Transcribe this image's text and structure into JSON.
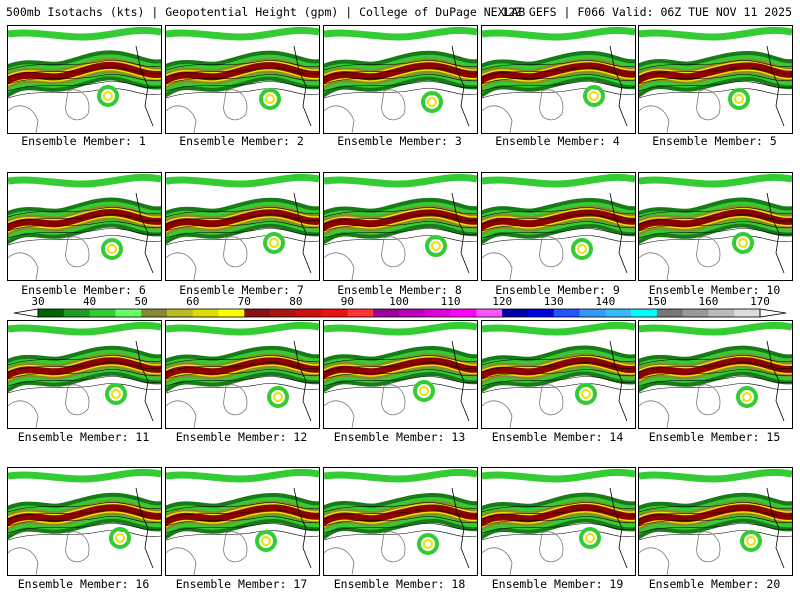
{
  "header": {
    "left": "500mb Isotachs (kts) | Geopotential Height (gpm) | College of DuPage NEXLAB",
    "right": "12Z GEFS | F066 Valid: 06Z TUE NOV 11 2025"
  },
  "caption_prefix": "Ensemble Member: ",
  "members": [
    "1",
    "2",
    "3",
    "4",
    "5",
    "6",
    "7",
    "8",
    "9",
    "10",
    "11",
    "12",
    "13",
    "14",
    "15",
    "16",
    "17",
    "18",
    "19",
    "20"
  ],
  "colorbar": {
    "ticks": [
      "30",
      "40",
      "50",
      "60",
      "70",
      "80",
      "90",
      "100",
      "110",
      "120",
      "130",
      "140",
      "150",
      "160",
      "170"
    ],
    "colors": [
      "#006400",
      "#229922",
      "#33cc33",
      "#66ff66",
      "#888833",
      "#bbbb22",
      "#dddd00",
      "#ffff00",
      "#881111",
      "#aa1111",
      "#cc1111",
      "#ee1111",
      "#ff3333",
      "#990099",
      "#bb00bb",
      "#dd00dd",
      "#ff00ff",
      "#ff55ff",
      "#0000aa",
      "#0000dd",
      "#2255ff",
      "#3399ff",
      "#33bbff",
      "#00ffff",
      "#777777",
      "#999999",
      "#bbbbbb",
      "#dddddd"
    ]
  },
  "legend": {
    "colors": {
      "green_dark": "#1a7a1a",
      "green": "#33cc33",
      "olive": "#8a8a2a",
      "yellow": "#e6e600",
      "maroon": "#8b0000",
      "purple": "#7a1a5a"
    }
  }
}
